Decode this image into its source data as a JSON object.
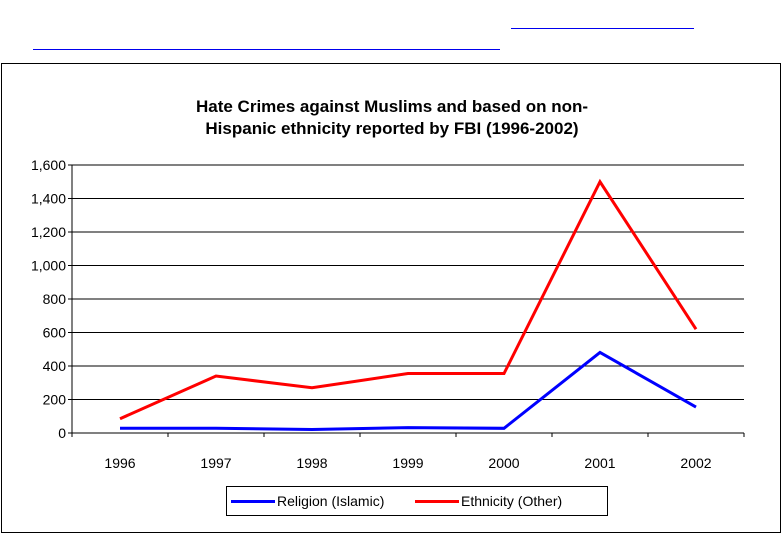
{
  "chart_data": {
    "type": "line",
    "title_lines": [
      "Hate Crimes against Muslims and based on non-",
      "Hispanic ethnicity reported by FBI (1996-2002)"
    ],
    "categories": [
      "1996",
      "1997",
      "1998",
      "1999",
      "2000",
      "2001",
      "2002"
    ],
    "series": [
      {
        "name": "Religion (Islamic)",
        "color": "#0000ff",
        "values": [
          28,
          28,
          21,
          32,
          28,
          481,
          155
        ]
      },
      {
        "name": "Ethnicity (Other)",
        "color": "#ff0000",
        "values": [
          85,
          340,
          270,
          355,
          355,
          1500,
          620
        ]
      }
    ],
    "y_ticks": [
      "0",
      "200",
      "400",
      "600",
      "800",
      "1,000",
      "1,200",
      "1,400",
      "1,600"
    ],
    "ylim": [
      0,
      1600
    ],
    "grid": true,
    "legend_position": "bottom"
  }
}
